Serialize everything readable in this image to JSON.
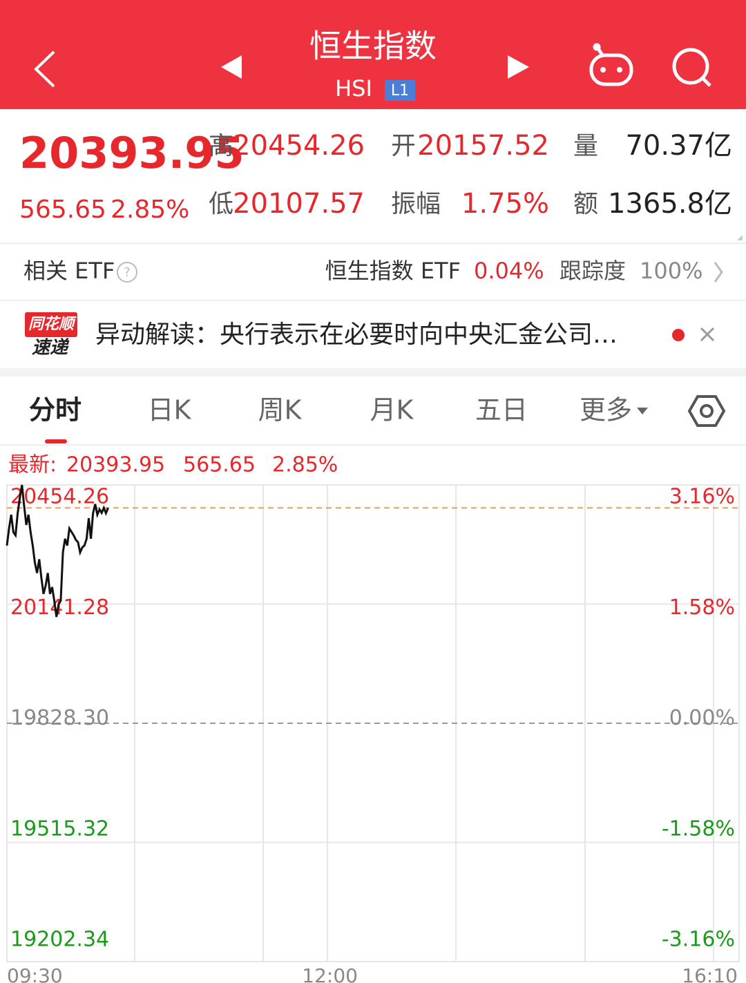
{
  "header": {
    "title": "恒生指数",
    "code": "HSI",
    "badge": "L1"
  },
  "quote": {
    "price": "20393.95",
    "change": "565.65",
    "change_pct": "2.85%",
    "stats": [
      {
        "label": "高",
        "value": "20454.26"
      },
      {
        "label": "开",
        "value": "20157.52"
      },
      {
        "label": "量",
        "value": "70.37亿"
      },
      {
        "label": "低",
        "value": "20107.57"
      },
      {
        "label": "振幅",
        "value": "1.75%"
      },
      {
        "label": "额",
        "value": "1365.8亿"
      }
    ]
  },
  "etf": {
    "label": "相关 ETF",
    "name": "恒生指数 ETF",
    "change": "0.04%",
    "tracking_label": "跟踪度",
    "tracking": "100%"
  },
  "news": {
    "logo_top": "同花顺",
    "logo_bottom": "速递",
    "text": "异动解读：央行表示在必要时向中央汇金公司…"
  },
  "tabs": [
    "分时",
    "日K",
    "周K",
    "月K",
    "五日",
    "更多"
  ],
  "chart_data": {
    "type": "line",
    "info_label": "最新:",
    "latest": 20393.95,
    "latest_change": 565.65,
    "latest_change_pct": "2.85%",
    "color": "#111111",
    "latest_color": "#e8a050",
    "x": [
      "09:30",
      "09:31",
      "09:32",
      "09:33",
      "09:34",
      "09:35",
      "09:36",
      "09:37",
      "09:38",
      "09:39",
      "09:40",
      "09:41",
      "09:42",
      "09:43",
      "09:44",
      "09:45",
      "09:46",
      "09:47",
      "09:48",
      "09:49",
      "09:50",
      "09:51",
      "09:52",
      "09:53",
      "09:54",
      "09:55",
      "09:56",
      "09:57",
      "09:58",
      "09:59",
      "10:00",
      "10:01",
      "10:02",
      "10:03",
      "10:04",
      "10:05",
      "10:06",
      "10:07",
      "10:08",
      "10:09",
      "10:10",
      "10:11",
      "10:12",
      "10:13",
      "10:14",
      "10:15",
      "10:16",
      "10:17"
    ],
    "values": [
      20295,
      20340,
      20376,
      20330,
      20322,
      20380,
      20420,
      20454.26,
      20400,
      20349,
      20376,
      20330,
      20295,
      20250,
      20223,
      20259,
      20210,
      20168,
      20190,
      20223,
      20168,
      20186,
      20150,
      20107.57,
      20140,
      20150,
      20277,
      20313,
      20295,
      20340,
      20331,
      20322,
      20310,
      20304,
      20277,
      20290,
      20295,
      20313,
      20367,
      20313,
      20380,
      20404,
      20376,
      20390,
      20381,
      20394,
      20380,
      20393.95
    ],
    "xlim": [
      "09:30",
      "16:10"
    ],
    "xticks": [
      "09:30",
      "12:00",
      "16:10"
    ],
    "ylim": [
      19202.34,
      20454.26
    ],
    "yticks": [
      20454.26,
      20141.28,
      {
        "value": 19828.3,
        "label": "19828.30"
      },
      19515.32,
      19202.34
    ],
    "right_labels": [
      "3.16%",
      "1.58%",
      "0.00%",
      "-1.58%",
      "-3.16%"
    ],
    "tick_colors": [
      "#e6282d",
      "#e6282d",
      "#888888",
      "#1a9a1a",
      "#1a9a1a"
    ],
    "grid": true
  }
}
